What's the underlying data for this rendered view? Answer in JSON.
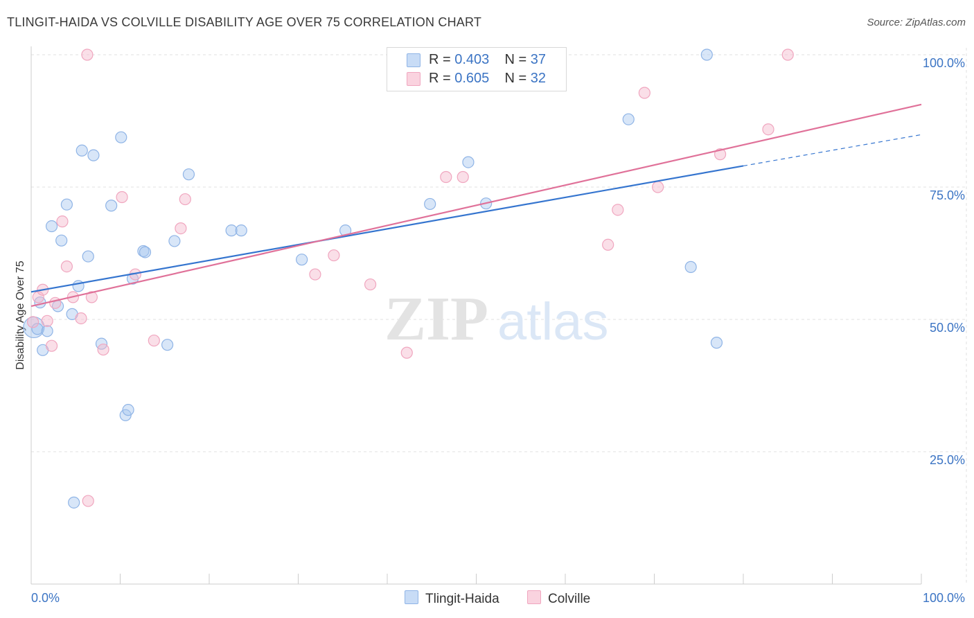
{
  "chart_data": {
    "type": "scatter",
    "title": "TLINGIT-HAIDA VS COLVILLE DISABILITY AGE OVER 75 CORRELATION CHART",
    "source": "Source: ZipAtlas.com",
    "xlabel": "",
    "ylabel": "Disability Age Over 75",
    "xlim": [
      0,
      100
    ],
    "ylim": [
      0,
      100
    ],
    "x_tick_labels": [
      "0.0%",
      "100.0%"
    ],
    "y_ticks": [
      {
        "value": 25,
        "label": "25.0%"
      },
      {
        "value": 50,
        "label": "50.0%"
      },
      {
        "value": 75,
        "label": "75.0%"
      },
      {
        "value": 100,
        "label": "100.0%"
      }
    ],
    "grid": true,
    "watermark": "ZIPatlas",
    "legend": [
      {
        "name": "Tlingit-Haida",
        "r_label": "R =",
        "r_value": "0.403",
        "n_label": "N =",
        "n_value": "37",
        "color": "#a8c8f0"
      },
      {
        "name": "Colville",
        "r_label": "R =",
        "r_value": "0.605",
        "n_label": "N =",
        "n_value": "32",
        "color": "#f5b8cb"
      }
    ],
    "series": [
      {
        "name": "Tlingit-Haida",
        "color": "#a8c8f0",
        "line_color": "#3575cf",
        "trend": {
          "x0": 0,
          "y0": 55.2,
          "x1": 80,
          "y1": 79.0,
          "dash_to_x": 100,
          "dash_to_y": 84.9
        },
        "points": [
          [
            0.3,
            48.5
          ],
          [
            0.7,
            48.2
          ],
          [
            1.0,
            53.2
          ],
          [
            1.3,
            44.2
          ],
          [
            1.8,
            47.8
          ],
          [
            2.3,
            67.6
          ],
          [
            3.0,
            52.5
          ],
          [
            3.4,
            64.9
          ],
          [
            4.0,
            71.7
          ],
          [
            4.6,
            51.0
          ],
          [
            5.3,
            56.3
          ],
          [
            5.7,
            81.9
          ],
          [
            6.4,
            61.9
          ],
          [
            7.0,
            81.0
          ],
          [
            7.9,
            45.4
          ],
          [
            9.0,
            71.5
          ],
          [
            10.1,
            84.4
          ],
          [
            10.6,
            31.9
          ],
          [
            10.9,
            32.9
          ],
          [
            11.4,
            57.7
          ],
          [
            12.6,
            62.9
          ],
          [
            12.8,
            62.7
          ],
          [
            15.3,
            45.2
          ],
          [
            16.1,
            64.8
          ],
          [
            17.7,
            77.4
          ],
          [
            22.5,
            66.8
          ],
          [
            23.6,
            66.8
          ],
          [
            30.4,
            61.3
          ],
          [
            35.3,
            66.8
          ],
          [
            44.8,
            71.8
          ],
          [
            49.1,
            79.7
          ],
          [
            51.1,
            71.9
          ],
          [
            67.1,
            87.8
          ],
          [
            74.1,
            59.9
          ],
          [
            75.9,
            100.0
          ],
          [
            77.0,
            45.6
          ],
          [
            4.8,
            15.4
          ]
        ],
        "sizes": [
          30,
          0,
          0,
          0,
          0,
          0,
          0,
          0,
          0,
          0,
          0,
          0,
          0,
          0,
          0,
          0,
          0,
          0,
          0,
          0,
          0,
          0,
          0,
          0,
          0,
          0,
          0,
          0,
          0,
          0,
          0,
          0,
          0,
          0,
          0,
          0,
          0
        ]
      },
      {
        "name": "Colville",
        "color": "#f5b8cb",
        "line_color": "#e07199",
        "trend": {
          "x0": 0,
          "y0": 52.5,
          "x1": 100,
          "y1": 90.6
        },
        "points": [
          [
            0.2,
            49.5
          ],
          [
            0.8,
            54.2
          ],
          [
            1.3,
            55.6
          ],
          [
            1.8,
            49.7
          ],
          [
            2.3,
            45.0
          ],
          [
            2.7,
            53.1
          ],
          [
            3.5,
            68.5
          ],
          [
            4.0,
            60.0
          ],
          [
            4.7,
            54.2
          ],
          [
            5.6,
            50.2
          ],
          [
            6.4,
            15.7
          ],
          [
            6.3,
            100.0
          ],
          [
            6.8,
            54.2
          ],
          [
            8.1,
            44.3
          ],
          [
            10.2,
            73.1
          ],
          [
            11.7,
            58.5
          ],
          [
            13.8,
            46.0
          ],
          [
            16.8,
            67.2
          ],
          [
            17.3,
            72.7
          ],
          [
            31.9,
            58.5
          ],
          [
            34.0,
            62.1
          ],
          [
            38.1,
            56.6
          ],
          [
            42.2,
            43.7
          ],
          [
            46.6,
            76.9
          ],
          [
            48.5,
            76.9
          ],
          [
            64.8,
            64.1
          ],
          [
            65.9,
            70.7
          ],
          [
            68.9,
            92.8
          ],
          [
            70.4,
            75.0
          ],
          [
            77.4,
            81.2
          ],
          [
            82.8,
            85.9
          ],
          [
            85.0,
            100.0
          ]
        ]
      }
    ]
  }
}
